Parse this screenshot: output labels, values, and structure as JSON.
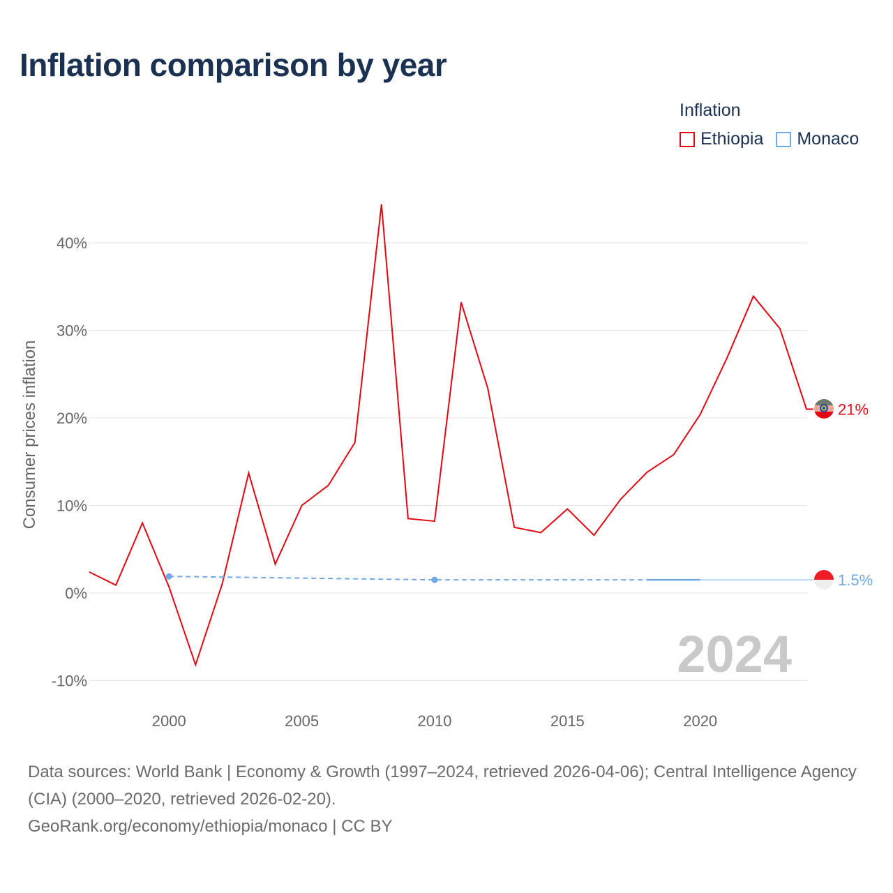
{
  "title": "Inflation comparison by year",
  "legend": {
    "title": "Inflation",
    "items": [
      {
        "label": "Ethiopia",
        "color": "#e30613"
      },
      {
        "label": "Monaco",
        "color": "#6fa8e6"
      }
    ]
  },
  "year_watermark": "2024",
  "footer": {
    "sources": "Data sources: World Bank | Economy & Growth (1997–2024, retrieved 2026-04-06); Central Intelligence Agency (CIA) (2000–2020, retrieved 2026-02-20).",
    "credit": "GeoRank.org/economy/ethiopia/monaco | CC BY"
  },
  "chart_data": {
    "type": "line",
    "title": "Inflation comparison by year",
    "xlabel": "",
    "ylabel": "Consumer prices inflation",
    "xlim": [
      1997,
      2024
    ],
    "ylim": [
      -10,
      45
    ],
    "x_ticks": [
      2000,
      2005,
      2010,
      2015,
      2020
    ],
    "y_ticks": [
      -10,
      0,
      10,
      20,
      30,
      40
    ],
    "y_tick_labels": [
      "-10%",
      "0%",
      "10%",
      "20%",
      "30%",
      "40%"
    ],
    "grid": true,
    "legend_position": "top-right",
    "series": [
      {
        "name": "Ethiopia",
        "color": "#e30613",
        "style": "solid",
        "end_label": "21%",
        "points": [
          [
            1997,
            2.4
          ],
          [
            1998,
            0.9
          ],
          [
            1999,
            8.0
          ],
          [
            2000,
            0.7
          ],
          [
            2001,
            -8.2
          ],
          [
            2002,
            1.0
          ],
          [
            2003,
            13.7
          ],
          [
            2004,
            3.3
          ],
          [
            2005,
            10.0
          ],
          [
            2006,
            12.3
          ],
          [
            2007,
            17.2
          ],
          [
            2008,
            44.4
          ],
          [
            2009,
            8.5
          ],
          [
            2010,
            8.2
          ],
          [
            2011,
            33.2
          ],
          [
            2012,
            23.4
          ],
          [
            2013,
            7.5
          ],
          [
            2014,
            6.9
          ],
          [
            2015,
            9.6
          ],
          [
            2016,
            6.6
          ],
          [
            2017,
            10.7
          ],
          [
            2018,
            13.8
          ],
          [
            2019,
            15.8
          ],
          [
            2020,
            20.4
          ],
          [
            2021,
            26.8
          ],
          [
            2022,
            33.9
          ],
          [
            2023,
            30.2
          ],
          [
            2024,
            21.0
          ]
        ]
      },
      {
        "name": "Monaco",
        "color": "#6fa8e6",
        "style": "dashed",
        "end_label": "1.5%",
        "points": [
          [
            2000,
            1.9
          ],
          [
            2010,
            1.5
          ],
          [
            2018,
            1.5
          ],
          [
            2020,
            1.5
          ],
          [
            2024,
            1.5
          ]
        ],
        "markers": [
          [
            2000,
            1.9
          ],
          [
            2010,
            1.5
          ]
        ]
      }
    ]
  }
}
